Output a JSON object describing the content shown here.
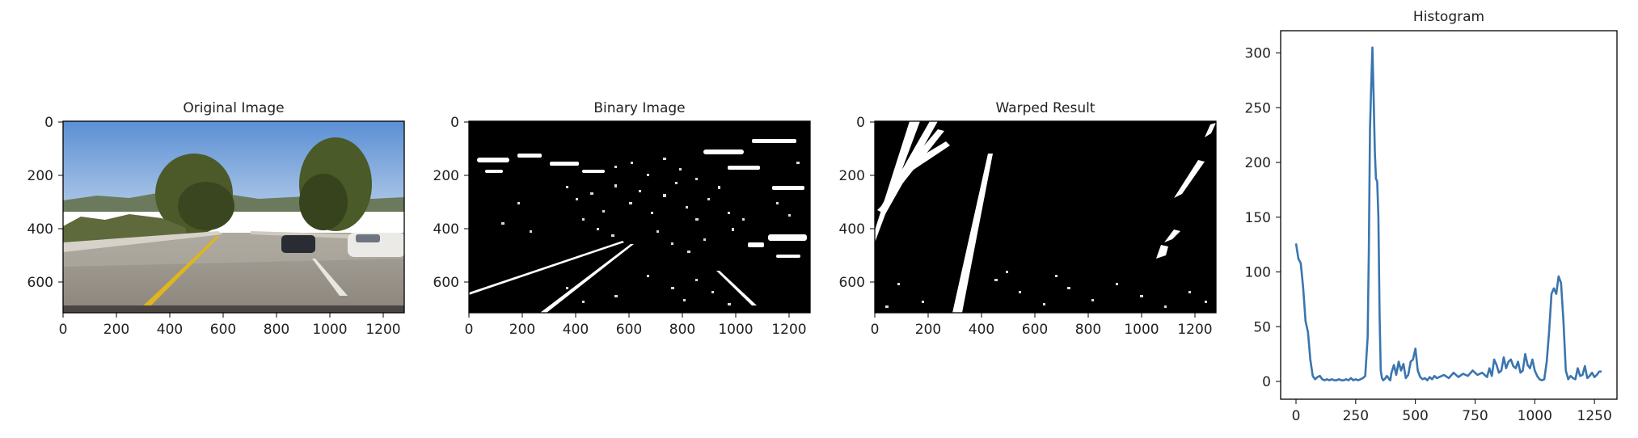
{
  "colors": {
    "series": "#3b75af",
    "axes": "#000000"
  },
  "panels": [
    {
      "title": "Original Image",
      "xticks": [
        "0",
        "200",
        "400",
        "600",
        "800",
        "1000",
        "1200"
      ],
      "yticks": [
        "0",
        "200",
        "400",
        "600"
      ]
    },
    {
      "title": "Binary Image",
      "xticks": [
        "0",
        "200",
        "400",
        "600",
        "800",
        "1000",
        "1200"
      ],
      "yticks": [
        "0",
        "200",
        "400",
        "600"
      ]
    },
    {
      "title": "Warped Result",
      "xticks": [
        "0",
        "200",
        "400",
        "600",
        "800",
        "1000",
        "1200"
      ],
      "yticks": [
        "0",
        "200",
        "400",
        "600"
      ]
    }
  ],
  "chart_data": {
    "type": "line",
    "title": "Histogram",
    "xlim": [
      0,
      1280
    ],
    "ylim": [
      0,
      310
    ],
    "xticks": [
      "0",
      "250",
      "500",
      "750",
      "1000",
      "1250"
    ],
    "yticks": [
      "0",
      "50",
      "100",
      "150",
      "200",
      "250",
      "300"
    ],
    "series": [
      {
        "x": [
          0,
          10,
          20,
          30,
          40,
          50,
          60,
          70,
          80,
          90,
          100,
          110,
          120,
          130,
          140,
          150,
          160,
          170,
          180,
          190,
          200,
          210,
          220,
          230,
          240,
          250,
          260,
          270,
          280,
          290,
          300,
          305,
          310,
          315,
          320,
          325,
          330,
          335,
          340,
          345,
          350,
          355,
          360,
          365,
          370,
          375,
          380,
          385,
          390,
          395,
          400,
          410,
          420,
          430,
          440,
          450,
          460,
          470,
          480,
          490,
          500,
          510,
          520,
          530,
          540,
          550,
          560,
          570,
          580,
          590,
          600,
          620,
          640,
          660,
          680,
          700,
          720,
          740,
          760,
          780,
          800,
          810,
          820,
          830,
          840,
          850,
          860,
          870,
          880,
          890,
          900,
          910,
          920,
          930,
          940,
          950,
          960,
          970,
          980,
          990,
          1000,
          1010,
          1020,
          1030,
          1040,
          1050,
          1060,
          1070,
          1080,
          1090,
          1100,
          1110,
          1120,
          1130,
          1140,
          1150,
          1160,
          1170,
          1180,
          1190,
          1200,
          1210,
          1220,
          1230,
          1240,
          1250,
          1260,
          1270,
          1280
        ],
        "y": [
          126,
          112,
          108,
          85,
          55,
          45,
          20,
          5,
          2,
          4,
          5,
          2,
          1,
          2,
          1,
          2,
          1,
          1,
          2,
          1,
          1,
          2,
          1,
          3,
          1,
          2,
          1,
          2,
          3,
          5,
          40,
          120,
          230,
          270,
          305,
          260,
          210,
          185,
          183,
          150,
          60,
          10,
          3,
          1,
          2,
          3,
          5,
          4,
          2,
          1,
          8,
          15,
          6,
          18,
          10,
          16,
          3,
          6,
          18,
          20,
          30,
          10,
          4,
          2,
          3,
          1,
          4,
          2,
          5,
          3,
          4,
          6,
          3,
          8,
          4,
          7,
          5,
          10,
          6,
          8,
          4,
          12,
          5,
          20,
          15,
          8,
          10,
          22,
          12,
          18,
          20,
          14,
          12,
          18,
          8,
          10,
          25,
          15,
          12,
          20,
          10,
          5,
          2,
          1,
          2,
          18,
          45,
          80,
          85,
          80,
          96,
          90,
          55,
          10,
          2,
          5,
          3,
          2,
          12,
          5,
          6,
          14,
          3,
          5,
          8,
          4,
          6,
          9,
          9
        ]
      }
    ]
  }
}
